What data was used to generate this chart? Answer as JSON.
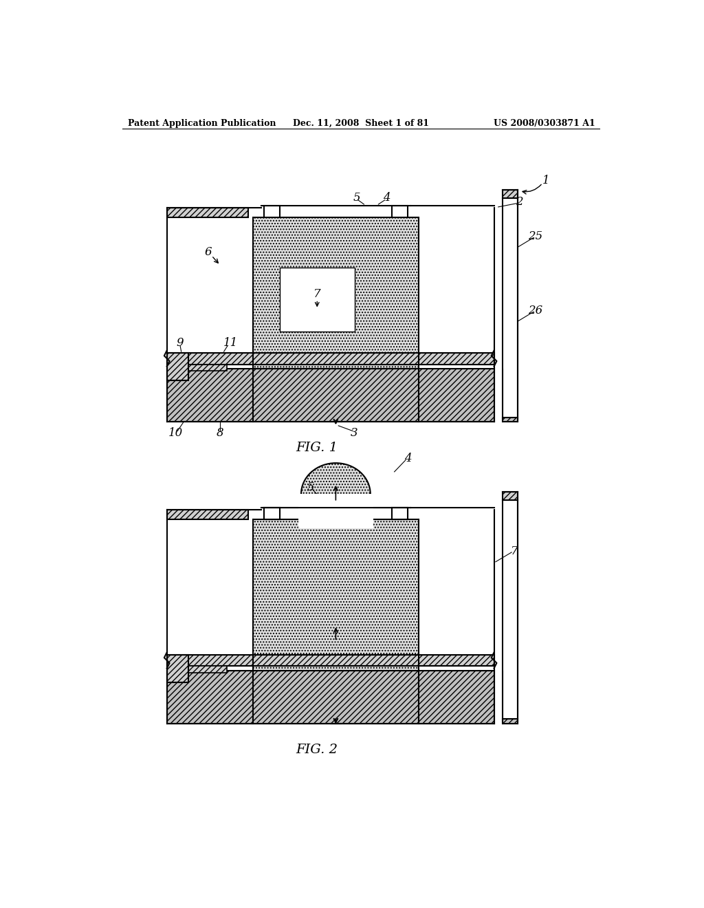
{
  "page_title_left": "Patent Application Publication",
  "page_title_center": "Dec. 11, 2008  Sheet 1 of 81",
  "page_title_right": "US 2008/0303871 A1",
  "fig1_label": "FIG. 1",
  "fig2_label": "FIG. 2",
  "bg_color": "#ffffff"
}
